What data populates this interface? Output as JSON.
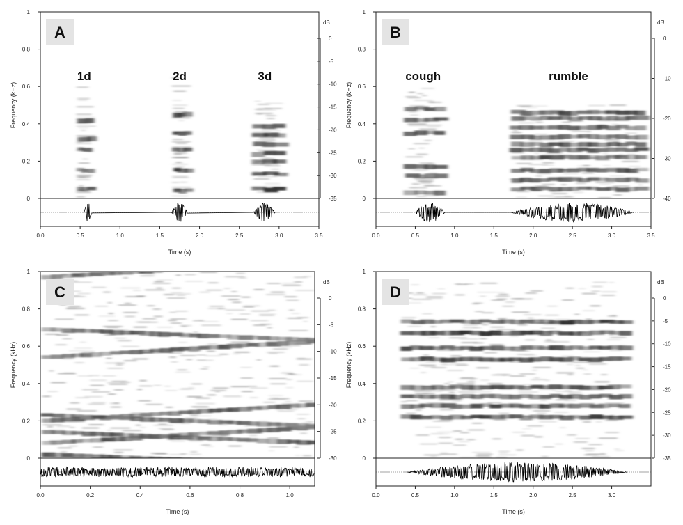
{
  "chart_data": [
    {
      "type": "heatmap",
      "panel_label": "A",
      "xlabel": "Time (s)",
      "ylabel": "Frequency (kHz)",
      "colorbar_label": "dB",
      "xlim": [
        0,
        3.5
      ],
      "ylim": [
        0,
        1
      ],
      "x_ticks": [
        "0.0",
        "0.5",
        "1.0",
        "1.5",
        "2.0",
        "2.5",
        "3.0",
        "3.5"
      ],
      "y_ticks": [
        "0",
        "0.2",
        "0.4",
        "0.6",
        "0.8",
        "1"
      ],
      "colorbar_ticks": [
        "0",
        "-5",
        "-10",
        "-15",
        "-20",
        "-25",
        "-30",
        "-35"
      ],
      "annotations": [
        {
          "text": "1d",
          "x": 0.55
        },
        {
          "text": "2d",
          "x": 1.75
        },
        {
          "text": "3d",
          "x": 2.82
        }
      ],
      "calls": [
        {
          "start": 0.45,
          "end": 0.62,
          "max_freq": 0.62,
          "bands": [
            0.05,
            0.15,
            0.26,
            0.32,
            0.42
          ],
          "intensity": 0.75
        },
        {
          "start": 1.65,
          "end": 1.85,
          "max_freq": 0.65,
          "bands": [
            0.04,
            0.15,
            0.26,
            0.35,
            0.45
          ],
          "intensity": 0.8
        },
        {
          "start": 2.65,
          "end": 3.05,
          "max_freq": 0.55,
          "bands": [
            0.05,
            0.13,
            0.2,
            0.24,
            0.29,
            0.34,
            0.39
          ],
          "intensity": 0.9
        }
      ]
    },
    {
      "type": "heatmap",
      "panel_label": "B",
      "xlabel": "Time (s)",
      "ylabel": "Frequency (kHz)",
      "colorbar_label": "dB",
      "xlim": [
        0,
        3.5
      ],
      "ylim": [
        0,
        1
      ],
      "x_ticks": [
        "0.0",
        "0.5",
        "1.0",
        "1.5",
        "2.0",
        "2.5",
        "3.0",
        "3.5"
      ],
      "y_ticks": [
        "0",
        "0.2",
        "0.4",
        "0.6",
        "0.8",
        "1"
      ],
      "colorbar_ticks": [
        "0",
        "-10",
        "-20",
        "-30",
        "-40"
      ],
      "annotations": [
        {
          "text": "cough",
          "x": 0.6
        },
        {
          "text": "rumble",
          "x": 2.45
        }
      ],
      "calls": [
        {
          "start": 0.35,
          "end": 0.85,
          "max_freq": 0.6,
          "bands": [
            0.03,
            0.12,
            0.17,
            0.35,
            0.42,
            0.48
          ],
          "intensity": 0.75
        },
        {
          "start": 1.7,
          "end": 3.4,
          "max_freq": 0.5,
          "bands": [
            0.05,
            0.1,
            0.15,
            0.22,
            0.26,
            0.29,
            0.33,
            0.38,
            0.43,
            0.46
          ],
          "intensity": 0.7
        }
      ]
    },
    {
      "type": "heatmap",
      "panel_label": "C",
      "xlabel": "Time (s)",
      "ylabel": "Frequency (kHz)",
      "colorbar_label": "dB",
      "xlim": [
        0,
        1.1
      ],
      "ylim": [
        0,
        1
      ],
      "x_ticks": [
        "0.0",
        "0.2",
        "0.4",
        "0.6",
        "0.8",
        "1.0"
      ],
      "y_ticks": [
        "0",
        "0.2",
        "0.4",
        "0.6",
        "0.8",
        "1"
      ],
      "colorbar_ticks": [
        "0",
        "-5",
        "-10",
        "-15",
        "-20",
        "-25",
        "-30"
      ],
      "annotations": [],
      "calls": [
        {
          "start": 0.0,
          "end": 1.1,
          "max_freq": 1.0,
          "bands": [
            0.02,
            0.08,
            0.14,
            0.2,
            0.23,
            0.54,
            0.69,
            0.97
          ],
          "intensity": 0.6
        }
      ]
    },
    {
      "type": "heatmap",
      "panel_label": "D",
      "xlabel": "Time (s)",
      "ylabel": "Frequency (kHz)",
      "colorbar_label": "dB",
      "xlim": [
        0,
        3.5
      ],
      "ylim": [
        0,
        1
      ],
      "x_ticks": [
        "0.0",
        "0.5",
        "1.0",
        "1.5",
        "2.0",
        "2.5",
        "3.0"
      ],
      "y_ticks": [
        "0",
        "0.2",
        "0.4",
        "0.6",
        "0.8",
        "1"
      ],
      "colorbar_ticks": [
        "0",
        "-5",
        "-10",
        "-15",
        "-20",
        "-25",
        "-30",
        "-35"
      ],
      "annotations": [],
      "calls": [
        {
          "start": 0.3,
          "end": 3.2,
          "max_freq": 0.95,
          "bands": [
            0.22,
            0.28,
            0.33,
            0.38,
            0.53,
            0.59,
            0.67,
            0.73
          ],
          "intensity": 0.85
        }
      ]
    }
  ]
}
